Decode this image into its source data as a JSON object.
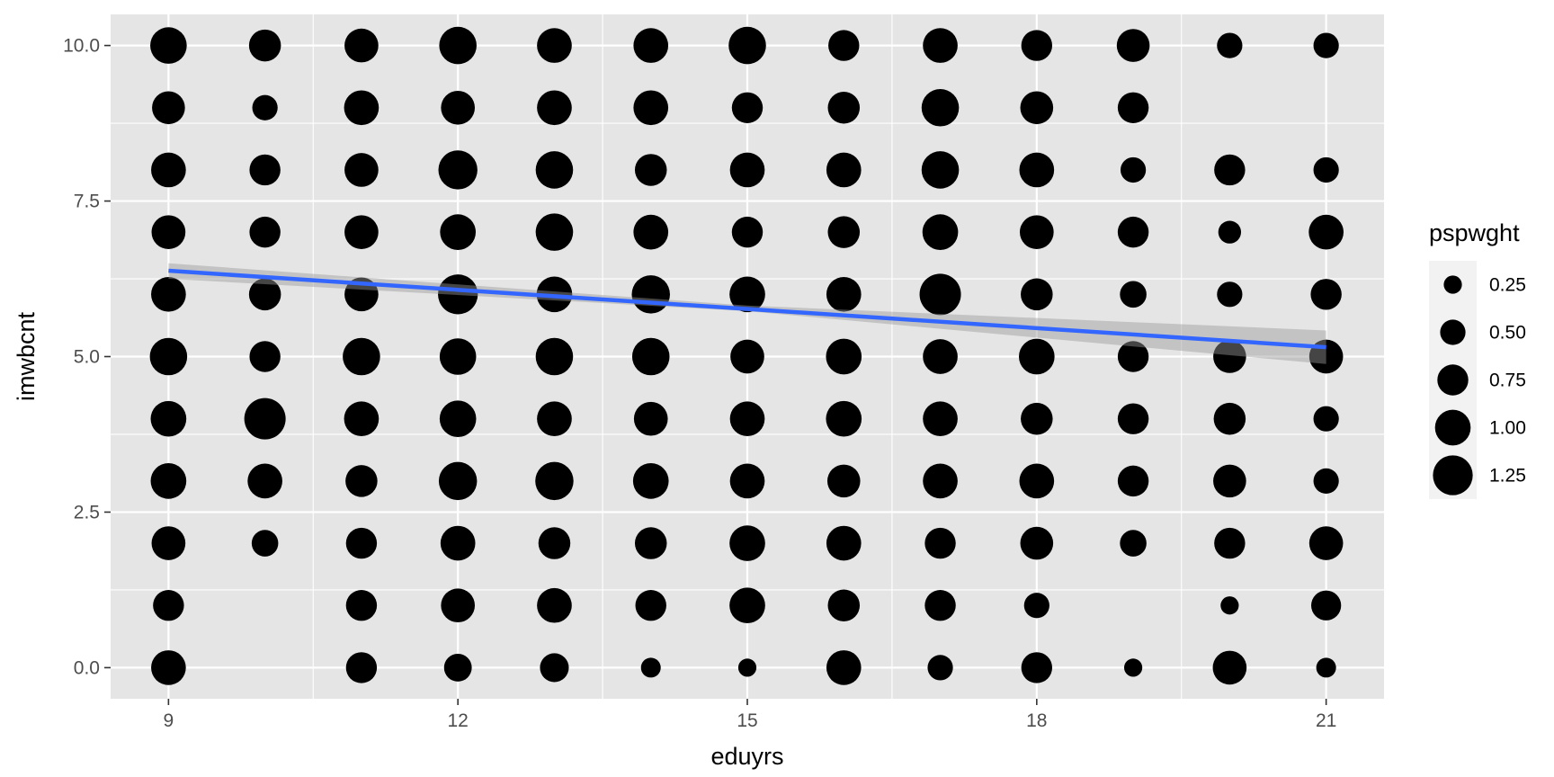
{
  "chart_data": {
    "type": "scatter",
    "title": "",
    "xlabel": "eduyrs",
    "ylabel": "imwbcnt",
    "xlim": [
      8.4,
      21.6
    ],
    "ylim": [
      -0.5,
      10.5
    ],
    "x_ticks": [
      9,
      12,
      15,
      18,
      21
    ],
    "x_tick_labels": [
      "9",
      "12",
      "15",
      "18",
      "21"
    ],
    "y_ticks": [
      0,
      2.5,
      5,
      7.5,
      10
    ],
    "y_tick_labels": [
      "0.0",
      "2.5",
      "5.0",
      "7.5",
      "10.0"
    ],
    "grid": true,
    "size_variable": "pspwght",
    "size_range": [
      0.08,
      1.35
    ],
    "legend": {
      "title": "pspwght",
      "placement": "right",
      "values": [
        0.25,
        0.5,
        0.75,
        1.0,
        1.25
      ],
      "labels": [
        "0.25",
        "0.50",
        "0.75",
        "1.00",
        "1.25"
      ]
    },
    "points": [
      {
        "x": 9,
        "y": 10,
        "size": 1.05
      },
      {
        "x": 9,
        "y": 9,
        "size": 0.85
      },
      {
        "x": 9,
        "y": 8,
        "size": 0.95
      },
      {
        "x": 9,
        "y": 7,
        "size": 0.9
      },
      {
        "x": 9,
        "y": 6,
        "size": 0.95
      },
      {
        "x": 9,
        "y": 5,
        "size": 1.1
      },
      {
        "x": 9,
        "y": 4,
        "size": 1.0
      },
      {
        "x": 9,
        "y": 3,
        "size": 1.0
      },
      {
        "x": 9,
        "y": 2,
        "size": 0.9
      },
      {
        "x": 9,
        "y": 1,
        "size": 0.75
      },
      {
        "x": 9,
        "y": 0,
        "size": 0.95
      },
      {
        "x": 10,
        "y": 10,
        "size": 0.8
      },
      {
        "x": 10,
        "y": 9,
        "size": 0.5
      },
      {
        "x": 10,
        "y": 8,
        "size": 0.75
      },
      {
        "x": 10,
        "y": 7,
        "size": 0.75
      },
      {
        "x": 10,
        "y": 6,
        "size": 0.8
      },
      {
        "x": 10,
        "y": 5,
        "size": 0.75
      },
      {
        "x": 10,
        "y": 4,
        "size": 1.35
      },
      {
        "x": 10,
        "y": 3,
        "size": 0.95
      },
      {
        "x": 10,
        "y": 2,
        "size": 0.55
      },
      {
        "x": 11,
        "y": 10,
        "size": 0.9
      },
      {
        "x": 11,
        "y": 9,
        "size": 0.95
      },
      {
        "x": 11,
        "y": 8,
        "size": 0.9
      },
      {
        "x": 11,
        "y": 7,
        "size": 0.9
      },
      {
        "x": 11,
        "y": 6,
        "size": 0.9
      },
      {
        "x": 11,
        "y": 5,
        "size": 1.1
      },
      {
        "x": 11,
        "y": 4,
        "size": 0.95
      },
      {
        "x": 11,
        "y": 3,
        "size": 0.8
      },
      {
        "x": 11,
        "y": 2,
        "size": 0.75
      },
      {
        "x": 11,
        "y": 1,
        "size": 0.75
      },
      {
        "x": 11,
        "y": 0,
        "size": 0.75
      },
      {
        "x": 12,
        "y": 10,
        "size": 1.1
      },
      {
        "x": 12,
        "y": 9,
        "size": 0.9
      },
      {
        "x": 12,
        "y": 8,
        "size": 1.2
      },
      {
        "x": 12,
        "y": 7,
        "size": 1.0
      },
      {
        "x": 12,
        "y": 6,
        "size": 1.25
      },
      {
        "x": 12,
        "y": 5,
        "size": 1.05
      },
      {
        "x": 12,
        "y": 4,
        "size": 1.05
      },
      {
        "x": 12,
        "y": 3,
        "size": 1.15
      },
      {
        "x": 12,
        "y": 2,
        "size": 0.95
      },
      {
        "x": 12,
        "y": 1,
        "size": 0.9
      },
      {
        "x": 12,
        "y": 0,
        "size": 0.6
      },
      {
        "x": 13,
        "y": 10,
        "size": 0.95
      },
      {
        "x": 13,
        "y": 9,
        "size": 0.95
      },
      {
        "x": 13,
        "y": 8,
        "size": 1.1
      },
      {
        "x": 13,
        "y": 7,
        "size": 1.1
      },
      {
        "x": 13,
        "y": 6,
        "size": 1.0
      },
      {
        "x": 13,
        "y": 5,
        "size": 1.1
      },
      {
        "x": 13,
        "y": 4,
        "size": 0.95
      },
      {
        "x": 13,
        "y": 3,
        "size": 1.15
      },
      {
        "x": 13,
        "y": 2,
        "size": 0.8
      },
      {
        "x": 13,
        "y": 1,
        "size": 0.95
      },
      {
        "x": 13,
        "y": 0,
        "size": 0.65
      },
      {
        "x": 14,
        "y": 10,
        "size": 0.95
      },
      {
        "x": 14,
        "y": 9,
        "size": 0.95
      },
      {
        "x": 14,
        "y": 8,
        "size": 0.8
      },
      {
        "x": 14,
        "y": 7,
        "size": 0.95
      },
      {
        "x": 14,
        "y": 6,
        "size": 1.15
      },
      {
        "x": 14,
        "y": 5,
        "size": 1.1
      },
      {
        "x": 14,
        "y": 4,
        "size": 0.9
      },
      {
        "x": 14,
        "y": 3,
        "size": 1.0
      },
      {
        "x": 14,
        "y": 2,
        "size": 0.8
      },
      {
        "x": 14,
        "y": 1,
        "size": 0.75
      },
      {
        "x": 14,
        "y": 0,
        "size": 0.3
      },
      {
        "x": 15,
        "y": 10,
        "size": 1.1
      },
      {
        "x": 15,
        "y": 9,
        "size": 0.75
      },
      {
        "x": 15,
        "y": 8,
        "size": 0.95
      },
      {
        "x": 15,
        "y": 7,
        "size": 0.75
      },
      {
        "x": 15,
        "y": 6,
        "size": 1.0
      },
      {
        "x": 15,
        "y": 5,
        "size": 0.9
      },
      {
        "x": 15,
        "y": 4,
        "size": 0.95
      },
      {
        "x": 15,
        "y": 3,
        "size": 0.95
      },
      {
        "x": 15,
        "y": 2,
        "size": 1.0
      },
      {
        "x": 15,
        "y": 1,
        "size": 1.0
      },
      {
        "x": 15,
        "y": 0,
        "size": 0.25
      },
      {
        "x": 16,
        "y": 10,
        "size": 0.75
      },
      {
        "x": 16,
        "y": 9,
        "size": 0.8
      },
      {
        "x": 16,
        "y": 8,
        "size": 0.95
      },
      {
        "x": 16,
        "y": 7,
        "size": 0.8
      },
      {
        "x": 16,
        "y": 6,
        "size": 0.95
      },
      {
        "x": 16,
        "y": 5,
        "size": 1.0
      },
      {
        "x": 16,
        "y": 4,
        "size": 1.0
      },
      {
        "x": 16,
        "y": 3,
        "size": 0.85
      },
      {
        "x": 16,
        "y": 2,
        "size": 0.95
      },
      {
        "x": 16,
        "y": 1,
        "size": 0.8
      },
      {
        "x": 16,
        "y": 0,
        "size": 0.95
      },
      {
        "x": 17,
        "y": 10,
        "size": 0.95
      },
      {
        "x": 17,
        "y": 9,
        "size": 1.1
      },
      {
        "x": 17,
        "y": 8,
        "size": 1.1
      },
      {
        "x": 17,
        "y": 7,
        "size": 1.0
      },
      {
        "x": 17,
        "y": 6,
        "size": 1.35
      },
      {
        "x": 17,
        "y": 5,
        "size": 0.95
      },
      {
        "x": 17,
        "y": 4,
        "size": 0.95
      },
      {
        "x": 17,
        "y": 3,
        "size": 0.95
      },
      {
        "x": 17,
        "y": 2,
        "size": 0.75
      },
      {
        "x": 17,
        "y": 1,
        "size": 0.75
      },
      {
        "x": 17,
        "y": 0,
        "size": 0.5
      },
      {
        "x": 18,
        "y": 10,
        "size": 0.75
      },
      {
        "x": 18,
        "y": 9,
        "size": 0.85
      },
      {
        "x": 18,
        "y": 8,
        "size": 0.95
      },
      {
        "x": 18,
        "y": 7,
        "size": 0.9
      },
      {
        "x": 18,
        "y": 6,
        "size": 0.8
      },
      {
        "x": 18,
        "y": 5,
        "size": 1.0
      },
      {
        "x": 18,
        "y": 4,
        "size": 0.8
      },
      {
        "x": 18,
        "y": 3,
        "size": 0.95
      },
      {
        "x": 18,
        "y": 2,
        "size": 0.85
      },
      {
        "x": 18,
        "y": 1,
        "size": 0.5
      },
      {
        "x": 18,
        "y": 0,
        "size": 0.75
      },
      {
        "x": 19,
        "y": 10,
        "size": 0.85
      },
      {
        "x": 19,
        "y": 9,
        "size": 0.75
      },
      {
        "x": 19,
        "y": 8,
        "size": 0.5
      },
      {
        "x": 19,
        "y": 7,
        "size": 0.75
      },
      {
        "x": 19,
        "y": 6,
        "size": 0.55
      },
      {
        "x": 19,
        "y": 5,
        "size": 0.75
      },
      {
        "x": 19,
        "y": 4,
        "size": 0.75
      },
      {
        "x": 19,
        "y": 3,
        "size": 0.75
      },
      {
        "x": 19,
        "y": 2,
        "size": 0.55
      },
      {
        "x": 19,
        "y": 0,
        "size": 0.25
      },
      {
        "x": 20,
        "y": 10,
        "size": 0.5
      },
      {
        "x": 20,
        "y": 8,
        "size": 0.75
      },
      {
        "x": 20,
        "y": 7,
        "size": 0.4
      },
      {
        "x": 20,
        "y": 6,
        "size": 0.5
      },
      {
        "x": 20,
        "y": 5,
        "size": 0.85
      },
      {
        "x": 20,
        "y": 4,
        "size": 0.8
      },
      {
        "x": 20,
        "y": 3,
        "size": 0.85
      },
      {
        "x": 20,
        "y": 2,
        "size": 0.75
      },
      {
        "x": 20,
        "y": 1,
        "size": 0.25
      },
      {
        "x": 20,
        "y": 0,
        "size": 0.9
      },
      {
        "x": 21,
        "y": 10,
        "size": 0.5
      },
      {
        "x": 21,
        "y": 8,
        "size": 0.5
      },
      {
        "x": 21,
        "y": 7,
        "size": 0.95
      },
      {
        "x": 21,
        "y": 6,
        "size": 0.75
      },
      {
        "x": 21,
        "y": 5,
        "size": 0.9
      },
      {
        "x": 21,
        "y": 4,
        "size": 0.5
      },
      {
        "x": 21,
        "y": 3,
        "size": 0.5
      },
      {
        "x": 21,
        "y": 2,
        "size": 0.9
      },
      {
        "x": 21,
        "y": 1,
        "size": 0.7
      },
      {
        "x": 21,
        "y": 0,
        "size": 0.3
      }
    ],
    "trend": {
      "method": "linear",
      "color": "#3366ff",
      "band_color": "#999999",
      "line": [
        {
          "x": 9,
          "y": 6.38
        },
        {
          "x": 21,
          "y": 5.15
        }
      ],
      "band_upper": [
        {
          "x": 9,
          "y": 6.5
        },
        {
          "x": 15,
          "y": 5.82
        },
        {
          "x": 21,
          "y": 5.42
        }
      ],
      "band_lower": [
        {
          "x": 9,
          "y": 6.25
        },
        {
          "x": 15,
          "y": 5.73
        },
        {
          "x": 21,
          "y": 4.88
        }
      ]
    },
    "colors": {
      "panel": "#e5e5e5",
      "grid": "#ffffff",
      "point": "#000000",
      "legend_key_bg": "#f2f2f2"
    }
  }
}
